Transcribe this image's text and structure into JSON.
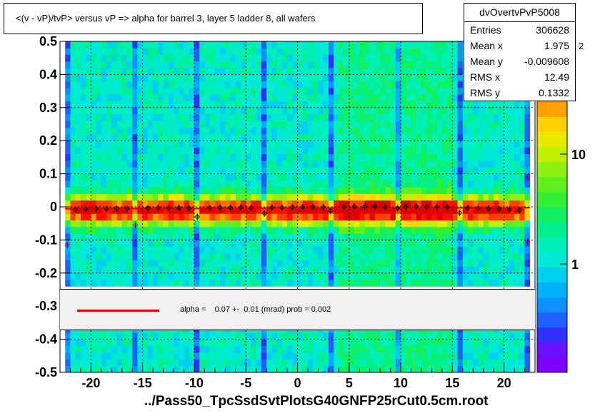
{
  "title": "<(v - vP)/tvP>  versus   vP => alpha for barrel 3, layer 5 ladder 8, all wafers",
  "stats": {
    "name": "dvOvertvPvP5008",
    "rows": [
      {
        "key": "Entries",
        "value": "306628"
      },
      {
        "key": "Mean x",
        "value": "1.975"
      },
      {
        "key": "Mean y",
        "value": "-0.009608"
      },
      {
        "key": "RMS x",
        "value": "12.49"
      },
      {
        "key": "RMS y",
        "value": "0.1332"
      }
    ]
  },
  "legend": {
    "fit_text": "alpha =    0.07 +-  0.01 (mrad) prob = 0.002",
    "line_color": "#e00000"
  },
  "footer": "../Pass50_TpcSsdSvtPlotsG40GNFP25rCut0.5cm.root",
  "colorbar": {
    "tick_labels": [
      "1",
      "10"
    ],
    "exponent_label": "2"
  },
  "chart_data": {
    "type": "heatmap",
    "title": "<(v - vP)/tvP>  versus   vP => alpha for barrel 3, layer 5 ladder 8, all wafers",
    "xlabel": "",
    "ylabel": "",
    "xlim": [
      -23,
      23
    ],
    "ylim": [
      -0.5,
      0.5
    ],
    "x_ticks": [
      -20,
      -15,
      -10,
      -5,
      0,
      5,
      10,
      15,
      20
    ],
    "x_tick_labels": [
      "-20",
      "-15",
      "-10",
      "-5",
      "0",
      "5",
      "10",
      "15",
      "20"
    ],
    "y_ticks": [
      -0.5,
      -0.4,
      -0.3,
      -0.2,
      -0.1,
      0,
      0.1,
      0.2,
      0.3,
      0.4,
      0.5
    ],
    "y_tick_labels": [
      "-0.5",
      "-0.4",
      "-0.3",
      "-0.2",
      "-0.1",
      "0",
      "0.1",
      "0.2",
      "0.3",
      "0.4",
      "0.5"
    ],
    "grid": true,
    "colorbar_log_scale": true,
    "band_center_y": -0.0096,
    "gap_columns_x": [
      -22.3,
      -15.7,
      -9.7,
      -3.2,
      3.2,
      9.7,
      15.7,
      22.3
    ],
    "profile_points": [
      {
        "x": -22.3,
        "y": -0.115
      },
      {
        "x": -21.5,
        "y": -0.008
      },
      {
        "x": -20.5,
        "y": -0.006
      },
      {
        "x": -19.5,
        "y": -0.005
      },
      {
        "x": -18.5,
        "y": -0.006
      },
      {
        "x": -17.5,
        "y": -0.005
      },
      {
        "x": -16.5,
        "y": -0.006
      },
      {
        "x": -15.7,
        "y": -0.055
      },
      {
        "x": -14.5,
        "y": -0.004
      },
      {
        "x": -13.5,
        "y": -0.003
      },
      {
        "x": -12.5,
        "y": -0.004
      },
      {
        "x": -11.5,
        "y": -0.003
      },
      {
        "x": -10.5,
        "y": -0.004
      },
      {
        "x": -9.7,
        "y": -0.03
      },
      {
        "x": -8.5,
        "y": -0.003
      },
      {
        "x": -7.5,
        "y": -0.002
      },
      {
        "x": -6.5,
        "y": -0.003
      },
      {
        "x": -5.5,
        "y": -0.002
      },
      {
        "x": -4.5,
        "y": -0.003
      },
      {
        "x": -3.2,
        "y": -0.02
      },
      {
        "x": -2.5,
        "y": -0.002
      },
      {
        "x": -1.5,
        "y": -0.002
      },
      {
        "x": -0.5,
        "y": -0.001
      },
      {
        "x": 0.5,
        "y": -0.001
      },
      {
        "x": 1.5,
        "y": 0.0
      },
      {
        "x": 2.5,
        "y": -0.001
      },
      {
        "x": 3.2,
        "y": -0.012
      },
      {
        "x": 4.5,
        "y": 0.0
      },
      {
        "x": 5.5,
        "y": 0.001
      },
      {
        "x": 6.5,
        "y": 0.0
      },
      {
        "x": 7.5,
        "y": 0.001
      },
      {
        "x": 8.5,
        "y": 0.0
      },
      {
        "x": 9.7,
        "y": -0.004
      },
      {
        "x": 10.5,
        "y": 0.0
      },
      {
        "x": 11.5,
        "y": 0.001
      },
      {
        "x": 12.5,
        "y": 0.0
      },
      {
        "x": 13.5,
        "y": 0.0
      },
      {
        "x": 14.5,
        "y": -0.001
      },
      {
        "x": 15.7,
        "y": -0.018
      },
      {
        "x": 16.5,
        "y": -0.003
      },
      {
        "x": 17.5,
        "y": -0.004
      },
      {
        "x": 18.5,
        "y": -0.005
      },
      {
        "x": 19.5,
        "y": -0.006
      },
      {
        "x": 20.5,
        "y": -0.008
      },
      {
        "x": 21.5,
        "y": -0.01
      },
      {
        "x": 22.3,
        "y": -0.105
      }
    ],
    "fit_line": {
      "slope_mrad": 0.07,
      "slope_error_mrad": 0.01,
      "prob": 0.002,
      "intercept": -0.004
    }
  }
}
